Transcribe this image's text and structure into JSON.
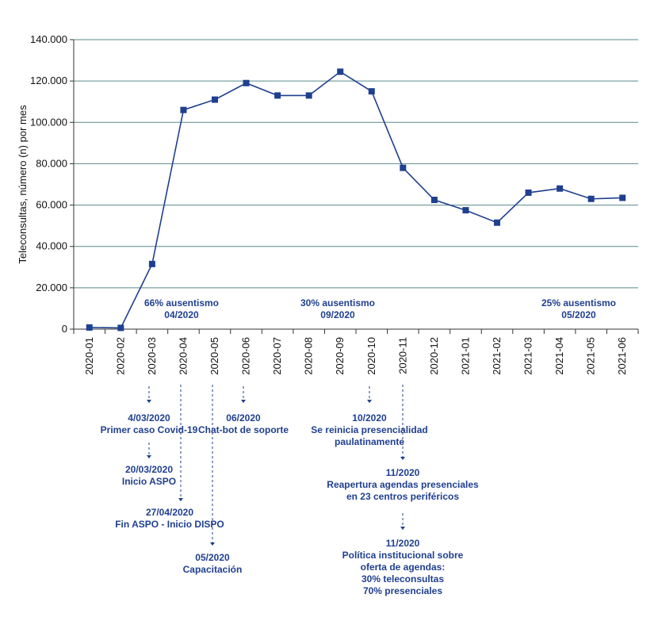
{
  "chart_data": {
    "type": "line",
    "ylabel": "Teleconsultas, número (n) por mes",
    "xlabel": "",
    "ylim": [
      0,
      140000
    ],
    "grid": true,
    "categories": [
      "2020-01",
      "2020-02",
      "2020-03",
      "2020-04",
      "2020-05",
      "2020-06",
      "2020-07",
      "2020-08",
      "2020-09",
      "2020-10",
      "2020-11",
      "2020-12",
      "2021-01",
      "2021-02",
      "2021-03",
      "2021-04",
      "2021-05",
      "2021-06"
    ],
    "values": [
      800,
      600,
      31500,
      106000,
      111000,
      119000,
      113000,
      113000,
      124500,
      115000,
      78000,
      62500,
      57500,
      51500,
      66000,
      68000,
      63000,
      63500
    ],
    "y_ticks": [
      {
        "value": 0,
        "label": "0"
      },
      {
        "value": 20000,
        "label": "20.000"
      },
      {
        "value": 40000,
        "label": "40.000"
      },
      {
        "value": 60000,
        "label": "60.000"
      },
      {
        "value": 80000,
        "label": "80.000"
      },
      {
        "value": 100000,
        "label": "100.000"
      },
      {
        "value": 120000,
        "label": "120.000"
      },
      {
        "value": 140000,
        "label": "140.000"
      }
    ],
    "series_color": "#1f3f8f",
    "grid_color": "#5a8a8a",
    "absenteeism_notes": [
      {
        "lines": [
          "66% ausentismo",
          "04/2020"
        ]
      },
      {
        "lines": [
          "30% ausentismo",
          "09/2020"
        ]
      },
      {
        "lines": [
          "25% ausentismo",
          "05/2020"
        ]
      }
    ],
    "events": [
      {
        "lines": [
          "4/03/2020",
          "Primer caso Covid-19"
        ]
      },
      {
        "lines": [
          "20/03/2020",
          "Inicio ASPO"
        ]
      },
      {
        "lines": [
          "27/04/2020",
          "Fin ASPO - Inicio DISPO"
        ]
      },
      {
        "lines": [
          "05/2020",
          "Capacitación"
        ]
      },
      {
        "lines": [
          "06/2020",
          "Chat-bot de soporte"
        ]
      },
      {
        "lines": [
          "10/2020",
          "Se reinicia presencialidad",
          "paulatinamente"
        ]
      },
      {
        "lines": [
          "11/2020",
          "Reapertura agendas presenciales",
          "en 23 centros periféricos"
        ]
      },
      {
        "lines": [
          "11/2020",
          "Política institucional sobre",
          "oferta de agendas:",
          "30% teleconsultas",
          "70% presenciales"
        ]
      }
    ]
  }
}
